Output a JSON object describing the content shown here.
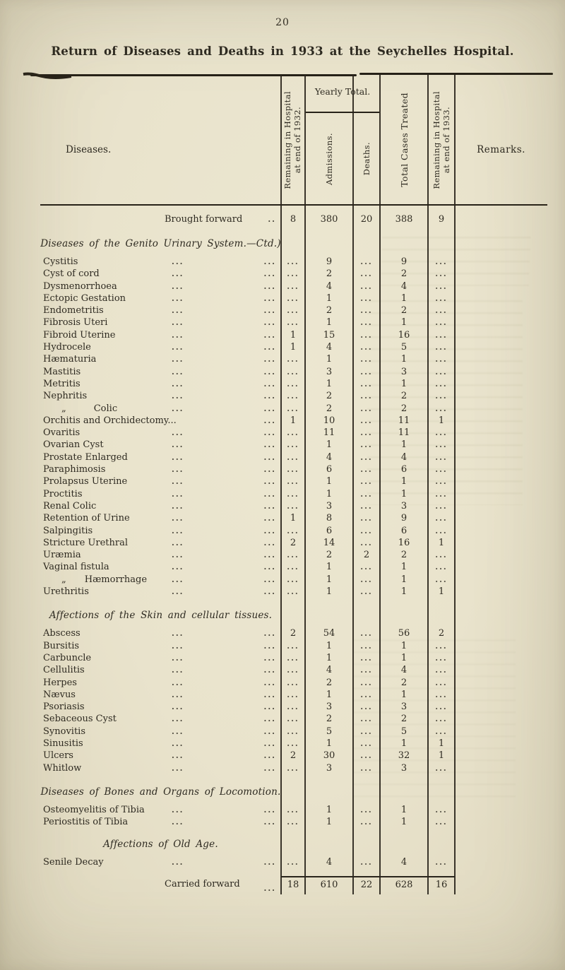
{
  "page": {
    "number": "20",
    "title": "Return of Diseases and Deaths in 1933 at the Seychelles Hospital."
  },
  "table": {
    "headers": {
      "diseases": "Diseases.",
      "rem_1932_line1": "Remaining in Hospital",
      "rem_1932_line2": "at end of 1932.",
      "yearly_total": "Yearly Total.",
      "admissions": "Admissions.",
      "deaths": "Deaths.",
      "total_cases": "Total Cases Treated",
      "rem_1933_line1": "Remaining in Hospital",
      "rem_1933_line2": "at end of 1933.",
      "remarks": "Remarks."
    },
    "leaders": {
      "row": "..."
    },
    "brought_forward": {
      "label": "Brought forward",
      "leader": "..",
      "cells": [
        "8",
        "380",
        "20",
        "388",
        "9"
      ]
    },
    "sections": [
      {
        "heading": "Diseases of the Genito Urinary System.—Ctd.)",
        "rows": [
          {
            "n": "Cystitis",
            "l1": "...",
            "c": [
              "...",
              "9",
              "...",
              "9",
              "..."
            ]
          },
          {
            "n": "Cyst of cord",
            "l1": "...",
            "c": [
              "...",
              "2",
              "...",
              "2",
              "..."
            ]
          },
          {
            "n": "Dysmenorrhoea",
            "l1": "...",
            "c": [
              "...",
              "4",
              "...",
              "4",
              "..."
            ]
          },
          {
            "n": "Ectopic Gestation",
            "l1": "...",
            "c": [
              "...",
              "1",
              "...",
              "1",
              "..."
            ]
          },
          {
            "n": "Endometritis",
            "l1": "...",
            "c": [
              "...",
              "2",
              "...",
              "2",
              "..."
            ]
          },
          {
            "n": "Fibrosis Uteri",
            "l1": "...",
            "c": [
              "...",
              "1",
              "...",
              "1",
              "..."
            ]
          },
          {
            "n": "Fibroid Uterine",
            "l1": "...",
            "c": [
              "1",
              "15",
              "...",
              "16",
              "..."
            ]
          },
          {
            "n": "Hydrocele",
            "l1": "...",
            "c": [
              "1",
              "4",
              "...",
              "5",
              "..."
            ]
          },
          {
            "n": "Hæmaturia",
            "l1": "...",
            "c": [
              "...",
              "1",
              "...",
              "1",
              "..."
            ]
          },
          {
            "n": "Mastitis",
            "l1": "...",
            "c": [
              "...",
              "3",
              "...",
              "3",
              "..."
            ]
          },
          {
            "n": "Metritis",
            "l1": "...",
            "c": [
              "...",
              "1",
              "...",
              "1",
              "..."
            ]
          },
          {
            "n": "Nephritis",
            "l1": "...",
            "c": [
              "...",
              "2",
              "...",
              "2",
              "..."
            ]
          },
          {
            "n": "  „   Colic",
            "l1": "...",
            "c": [
              "...",
              "2",
              "...",
              "2",
              "..."
            ]
          },
          {
            "n": "Orchitis and Orchidectomy...",
            "l1": "",
            "c": [
              "1",
              "10",
              "...",
              "11",
              "1"
            ]
          },
          {
            "n": "Ovaritis",
            "l1": "...",
            "c": [
              "...",
              "11",
              "...",
              "11",
              "..."
            ]
          },
          {
            "n": "Ovarian Cyst",
            "l1": "...",
            "c": [
              "...",
              "1",
              "...",
              "1",
              "..."
            ]
          },
          {
            "n": "Prostate Enlarged",
            "l1": "...",
            "c": [
              "...",
              "4",
              "...",
              "4",
              "..."
            ]
          },
          {
            "n": "Paraphimosis",
            "l1": "...",
            "c": [
              "...",
              "6",
              "...",
              "6",
              "..."
            ]
          },
          {
            "n": "Prolapsus Uterine",
            "l1": "...",
            "c": [
              "...",
              "1",
              "...",
              "1",
              "..."
            ]
          },
          {
            "n": "Proctitis",
            "l1": "...",
            "c": [
              "...",
              "1",
              "...",
              "1",
              "..."
            ]
          },
          {
            "n": "Renal Colic",
            "l1": "...",
            "c": [
              "...",
              "3",
              "...",
              "3",
              "..."
            ]
          },
          {
            "n": "Retention of Urine",
            "l1": "...",
            "c": [
              "1",
              "8",
              "...",
              "9",
              "..."
            ]
          },
          {
            "n": "Salpingitis",
            "l1": "...",
            "c": [
              "...",
              "6",
              "...",
              "6",
              "..."
            ]
          },
          {
            "n": "Stricture Urethral",
            "l1": "...",
            "c": [
              "2",
              "14",
              "...",
              "16",
              "1"
            ]
          },
          {
            "n": "Uræmia",
            "l1": "...",
            "c": [
              "...",
              "2",
              "2",
              "2",
              "..."
            ]
          },
          {
            "n": "Vaginal fistula",
            "l1": "...",
            "c": [
              "...",
              "1",
              "...",
              "1",
              "..."
            ]
          },
          {
            "n": "  „  Hæmorrhage",
            "l1": "...",
            "c": [
              "...",
              "1",
              "...",
              "1",
              "..."
            ]
          },
          {
            "n": "Urethritis",
            "l1": "...",
            "c": [
              "...",
              "1",
              "...",
              "1",
              "1"
            ]
          }
        ]
      },
      {
        "heading": "Affections of the Skin and cellular tissues.",
        "rows": [
          {
            "n": "Abscess",
            "l1": "...",
            "c": [
              "2",
              "54",
              "...",
              "56",
              "2"
            ]
          },
          {
            "n": "Bursitis",
            "l1": "...",
            "c": [
              "...",
              "1",
              "...",
              "1",
              "..."
            ]
          },
          {
            "n": "Carbuncle",
            "l1": "...",
            "c": [
              "...",
              "1",
              "...",
              "1",
              "..."
            ]
          },
          {
            "n": "Cellulitis",
            "l1": "...",
            "c": [
              "...",
              "4",
              "...",
              "4",
              "..."
            ]
          },
          {
            "n": "Herpes",
            "l1": "...",
            "c": [
              "...",
              "2",
              "...",
              "2",
              "..."
            ]
          },
          {
            "n": "Nævus",
            "l1": "...",
            "c": [
              "...",
              "1",
              "...",
              "1",
              "..."
            ]
          },
          {
            "n": "Psoriasis",
            "l1": "...",
            "c": [
              "...",
              "3",
              "...",
              "3",
              "..."
            ]
          },
          {
            "n": "Sebaceous Cyst",
            "l1": "...",
            "c": [
              "...",
              "2",
              "...",
              "2",
              "..."
            ]
          },
          {
            "n": "Synovitis",
            "l1": "...",
            "c": [
              "...",
              "5",
              "...",
              "5",
              "..."
            ]
          },
          {
            "n": "Sinusitis",
            "l1": "...",
            "c": [
              "...",
              "1",
              "...",
              "1",
              "1"
            ]
          },
          {
            "n": "Ulcers",
            "l1": "...",
            "c": [
              "2",
              "30",
              "...",
              "32",
              "1"
            ]
          },
          {
            "n": "Whitlow",
            "l1": "...",
            "c": [
              "...",
              "3",
              "...",
              "3",
              "..."
            ]
          }
        ]
      },
      {
        "heading": "Diseases of Bones and Organs of Locomotion.",
        "rows": [
          {
            "n": "Osteomyelitis of Tibia",
            "l1": "...",
            "c": [
              "...",
              "1",
              "...",
              "1",
              "..."
            ]
          },
          {
            "n": "Periostitis of Tibia",
            "l1": "...",
            "c": [
              "...",
              "1",
              "...",
              "1",
              "..."
            ]
          }
        ]
      },
      {
        "heading": "Affections of Old Age.",
        "rows": [
          {
            "n": "Senile Decay",
            "l1": "...",
            "c": [
              "...",
              "4",
              "...",
              "4",
              "..."
            ]
          }
        ]
      }
    ],
    "carried_forward": {
      "label": "Carried forward",
      "leader": "...",
      "cells": [
        "18",
        "610",
        "22",
        "628",
        "16"
      ]
    }
  }
}
